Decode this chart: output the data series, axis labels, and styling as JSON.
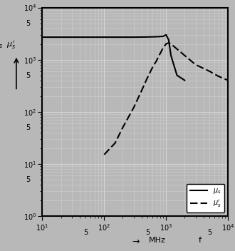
{
  "xmin": 10,
  "xmax": 10000,
  "ymin": 1,
  "ymax": 10000,
  "solid_x": [
    10,
    20,
    50,
    100,
    200,
    300,
    500,
    700,
    900,
    1000,
    1100,
    1200,
    1500,
    2000
  ],
  "solid_y": [
    2700,
    2700,
    2700,
    2700,
    2700,
    2700,
    2720,
    2750,
    2800,
    3000,
    2400,
    1200,
    500,
    400
  ],
  "dashed_x": [
    100,
    150,
    200,
    300,
    400,
    500,
    600,
    700,
    800,
    900,
    1000,
    1100,
    1200,
    1500,
    2000,
    3000,
    5000,
    7000,
    10000
  ],
  "dashed_y": [
    15,
    25,
    50,
    120,
    250,
    450,
    700,
    950,
    1300,
    1700,
    2000,
    2100,
    2000,
    1600,
    1200,
    800,
    600,
    480,
    400
  ],
  "line_color": "#000000",
  "bg_color": "#b8b8b8",
  "grid_major_color": "#d8d8d8",
  "grid_minor_color": "#d0d0d0",
  "fig_bg_color": "#b8b8b8",
  "xlabel_text": "f",
  "xlabel_unit": "MHz",
  "legend_label1": "µs"
}
